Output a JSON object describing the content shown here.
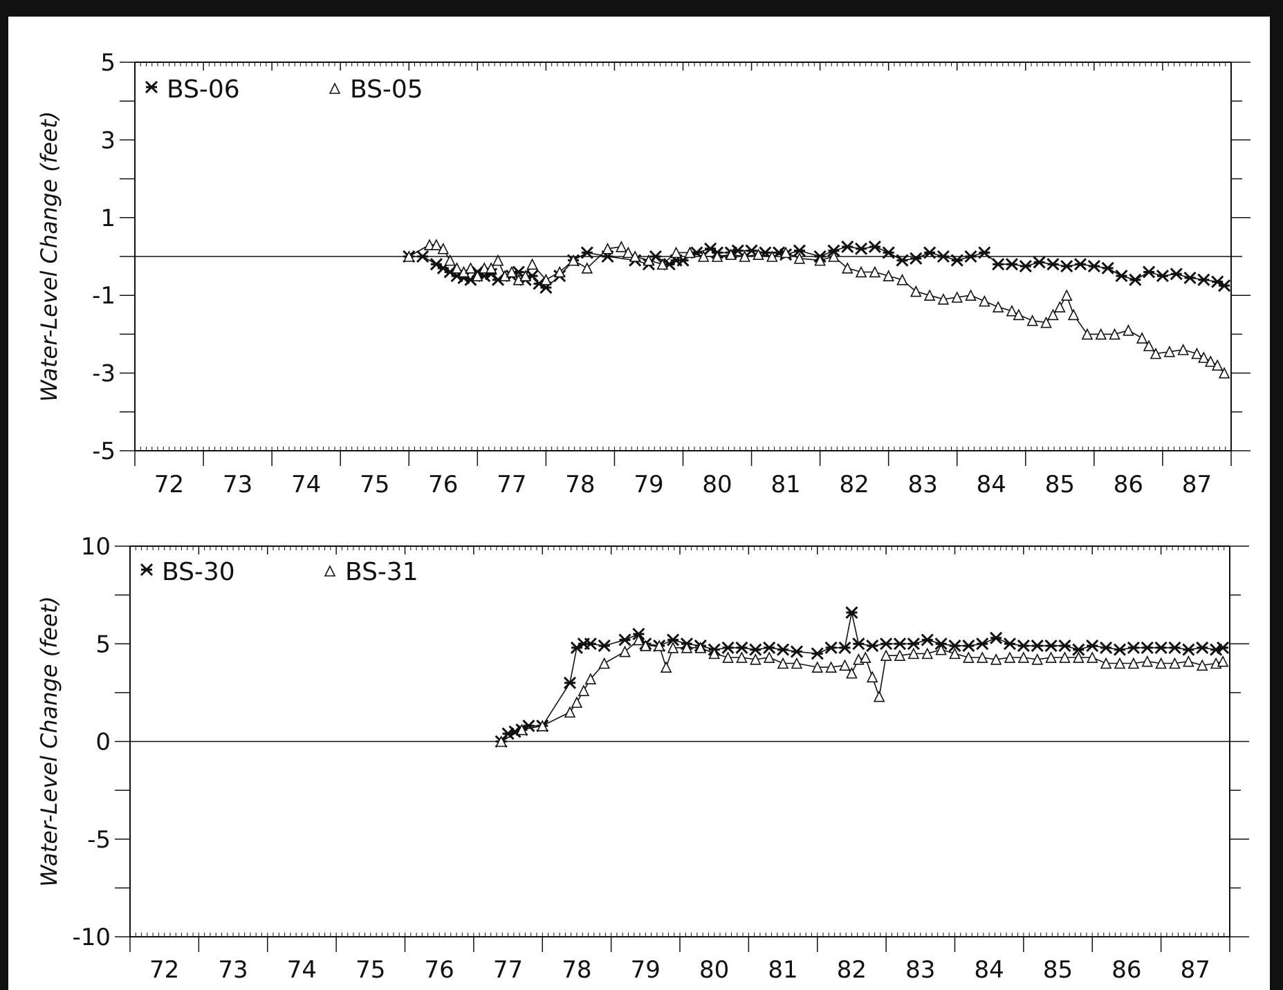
{
  "chart_data": [
    {
      "type": "line",
      "ylabel": "Water-Level Change  (feet)",
      "ylim": [
        -5,
        5
      ],
      "yticks": [
        5,
        3,
        1,
        -1,
        -3,
        -5
      ],
      "xlim": [
        71.5,
        87.5
      ],
      "xticks": [
        72,
        73,
        74,
        75,
        76,
        77,
        78,
        79,
        80,
        81,
        82,
        83,
        84,
        85,
        86,
        87
      ],
      "reference_line": 0,
      "legend_position": "top-left",
      "series": [
        {
          "name": "BS-06",
          "marker": "asterisk",
          "x": [
            75.5,
            75.7,
            75.9,
            76.0,
            76.1,
            76.2,
            76.3,
            76.4,
            76.5,
            76.6,
            76.7,
            76.8,
            77.0,
            77.1,
            77.2,
            77.3,
            77.4,
            77.5,
            77.7,
            77.9,
            78.1,
            78.4,
            78.8,
            79.0,
            79.1,
            79.3,
            79.4,
            79.5,
            79.7,
            79.9,
            80.0,
            80.2,
            80.3,
            80.5,
            80.7,
            80.9,
            81.0,
            81.2,
            81.5,
            81.7,
            81.9,
            82.1,
            82.3,
            82.5,
            82.7,
            82.9,
            83.1,
            83.3,
            83.5,
            83.7,
            83.9,
            84.1,
            84.3,
            84.5,
            84.7,
            84.9,
            85.1,
            85.3,
            85.5,
            85.7,
            85.9,
            86.1,
            86.3,
            86.5,
            86.7,
            86.9,
            87.1,
            87.3,
            87.4
          ],
          "values": [
            0.0,
            0.0,
            -0.2,
            -0.3,
            -0.4,
            -0.5,
            -0.55,
            -0.6,
            -0.4,
            -0.5,
            -0.45,
            -0.6,
            -0.5,
            -0.4,
            -0.6,
            -0.5,
            -0.7,
            -0.8,
            -0.5,
            -0.1,
            0.1,
            0.0,
            -0.1,
            -0.2,
            0.0,
            -0.2,
            -0.1,
            -0.1,
            0.1,
            0.2,
            0.1,
            0.1,
            0.15,
            0.15,
            0.1,
            0.1,
            0.05,
            0.15,
            0.0,
            0.15,
            0.25,
            0.2,
            0.25,
            0.1,
            -0.1,
            -0.05,
            0.1,
            0.0,
            -0.1,
            0.0,
            0.1,
            -0.2,
            -0.2,
            -0.25,
            -0.15,
            -0.2,
            -0.25,
            -0.2,
            -0.25,
            -0.3,
            -0.5,
            -0.6,
            -0.4,
            -0.5,
            -0.45,
            -0.55,
            -0.6,
            -0.65,
            -0.75
          ]
        },
        {
          "name": "BS-05",
          "marker": "triangle",
          "x": [
            75.5,
            75.8,
            75.9,
            76.0,
            76.1,
            76.2,
            76.3,
            76.4,
            76.5,
            76.6,
            76.7,
            76.8,
            76.9,
            77.0,
            77.1,
            77.2,
            77.3,
            77.5,
            77.7,
            77.9,
            78.1,
            78.4,
            78.6,
            78.7,
            78.8,
            79.0,
            79.2,
            79.4,
            79.6,
            79.8,
            80.0,
            80.2,
            80.4,
            80.6,
            80.8,
            81.0,
            81.2,
            81.5,
            81.7,
            81.9,
            82.1,
            82.3,
            82.5,
            82.7,
            82.9,
            83.1,
            83.3,
            83.5,
            83.7,
            83.9,
            84.1,
            84.3,
            84.4,
            84.6,
            84.8,
            84.9,
            85.0,
            85.1,
            85.2,
            85.4,
            85.6,
            85.8,
            86.0,
            86.2,
            86.3,
            86.4,
            86.6,
            86.8,
            87.0,
            87.1,
            87.2,
            87.3,
            87.4
          ],
          "values": [
            0.0,
            0.3,
            0.3,
            0.2,
            -0.1,
            -0.3,
            -0.4,
            -0.3,
            -0.5,
            -0.3,
            -0.3,
            -0.1,
            -0.5,
            -0.4,
            -0.6,
            -0.5,
            -0.2,
            -0.6,
            -0.4,
            -0.1,
            -0.3,
            0.2,
            0.25,
            0.1,
            0.0,
            -0.1,
            -0.2,
            0.1,
            0.1,
            0.0,
            0.0,
            0.05,
            0.0,
            0.05,
            0.0,
            0.1,
            -0.05,
            -0.1,
            0.0,
            -0.3,
            -0.4,
            -0.4,
            -0.5,
            -0.6,
            -0.9,
            -1.0,
            -1.1,
            -1.05,
            -1.0,
            -1.15,
            -1.3,
            -1.4,
            -1.5,
            -1.65,
            -1.7,
            -1.5,
            -1.3,
            -1.0,
            -1.5,
            -2.0,
            -2.0,
            -2.0,
            -1.9,
            -2.1,
            -2.3,
            -2.5,
            -2.45,
            -2.4,
            -2.5,
            -2.6,
            -2.7,
            -2.8,
            -3.0
          ]
        }
      ]
    },
    {
      "type": "line",
      "ylabel": "Water-Level Change  (feet)",
      "ylim": [
        -10,
        10
      ],
      "yticks": [
        10,
        5,
        0,
        -5,
        -10
      ],
      "xlim": [
        71.5,
        87.5
      ],
      "xticks": [
        72,
        73,
        74,
        75,
        76,
        77,
        78,
        79,
        80,
        81,
        82,
        83,
        84,
        85,
        86,
        87
      ],
      "reference_line": 0,
      "legend_position": "top-left",
      "series": [
        {
          "name": "BS-30",
          "marker": "asterisk",
          "x": [
            76.9,
            77.0,
            77.1,
            77.2,
            77.3,
            77.5,
            77.9,
            78.0,
            78.1,
            78.2,
            78.4,
            78.7,
            78.9,
            79.0,
            79.2,
            79.4,
            79.6,
            79.8,
            80.0,
            80.2,
            80.4,
            80.6,
            80.8,
            81.0,
            81.2,
            81.5,
            81.7,
            81.9,
            82.0,
            82.1,
            82.3,
            82.5,
            82.7,
            82.9,
            83.1,
            83.3,
            83.5,
            83.7,
            83.9,
            84.1,
            84.3,
            84.5,
            84.7,
            84.9,
            85.1,
            85.3,
            85.5,
            85.7,
            85.9,
            86.1,
            86.3,
            86.5,
            86.7,
            86.9,
            87.1,
            87.3,
            87.4
          ],
          "values": [
            0.0,
            0.4,
            0.5,
            0.6,
            0.8,
            0.8,
            3.0,
            4.8,
            5.0,
            5.0,
            4.9,
            5.2,
            5.5,
            5.0,
            4.9,
            5.2,
            5.0,
            4.9,
            4.7,
            4.8,
            4.8,
            4.7,
            4.8,
            4.7,
            4.6,
            4.5,
            4.8,
            4.8,
            6.6,
            5.0,
            4.9,
            5.0,
            5.0,
            5.0,
            5.2,
            5.0,
            4.9,
            4.9,
            5.0,
            5.3,
            5.0,
            4.9,
            4.9,
            4.9,
            4.9,
            4.7,
            4.9,
            4.8,
            4.7,
            4.8,
            4.8,
            4.8,
            4.8,
            4.7,
            4.8,
            4.7,
            4.8
          ]
        },
        {
          "name": "BS-31",
          "marker": "triangle",
          "x": [
            76.9,
            77.2,
            77.5,
            77.9,
            78.0,
            78.1,
            78.2,
            78.4,
            78.7,
            78.9,
            79.0,
            79.2,
            79.3,
            79.4,
            79.6,
            79.8,
            80.0,
            80.2,
            80.4,
            80.6,
            80.8,
            81.0,
            81.2,
            81.5,
            81.7,
            81.9,
            82.0,
            82.1,
            82.2,
            82.3,
            82.4,
            82.5,
            82.7,
            82.9,
            83.1,
            83.3,
            83.5,
            83.7,
            83.9,
            84.1,
            84.3,
            84.5,
            84.7,
            84.9,
            85.1,
            85.3,
            85.5,
            85.7,
            85.9,
            86.1,
            86.3,
            86.5,
            86.7,
            86.9,
            87.1,
            87.3,
            87.4
          ],
          "values": [
            0.0,
            0.6,
            0.8,
            1.5,
            2.0,
            2.6,
            3.2,
            4.0,
            4.6,
            5.2,
            4.9,
            4.9,
            3.8,
            4.8,
            4.8,
            4.8,
            4.5,
            4.3,
            4.3,
            4.2,
            4.3,
            4.0,
            4.0,
            3.8,
            3.8,
            3.9,
            3.5,
            4.2,
            4.3,
            3.3,
            2.3,
            4.4,
            4.4,
            4.5,
            4.5,
            4.7,
            4.5,
            4.3,
            4.3,
            4.2,
            4.3,
            4.3,
            4.2,
            4.3,
            4.3,
            4.3,
            4.3,
            4.0,
            4.0,
            4.0,
            4.1,
            4.0,
            4.0,
            4.1,
            3.9,
            4.0,
            4.1
          ]
        }
      ]
    }
  ]
}
